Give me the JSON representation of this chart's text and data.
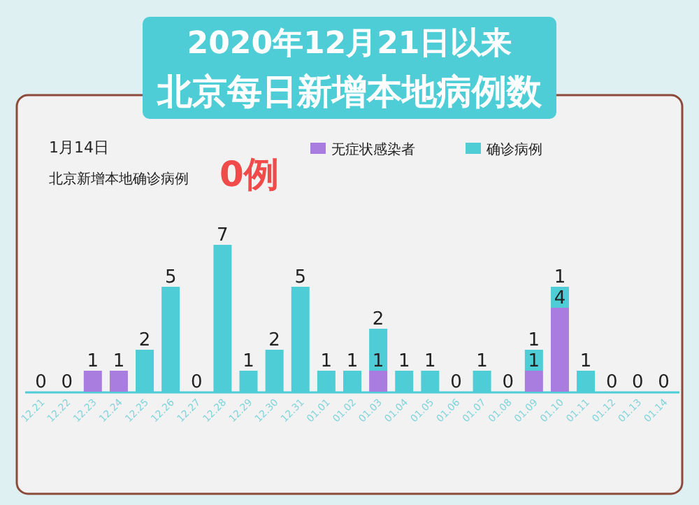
{
  "chart_data": {
    "type": "bar",
    "stacked": true,
    "title": "2020年12月21日以来",
    "subtitle": "北京每日新增本地病例数",
    "annotations": [
      "1月14日",
      "北京新增本地确诊病例",
      "0例"
    ],
    "categories": [
      "12.21",
      "12.22",
      "12.23",
      "12.24",
      "12.25",
      "12.26",
      "12.27",
      "12.28",
      "12.29",
      "12.30",
      "12.31",
      "01.01",
      "01.02",
      "01.03",
      "01.04",
      "01.05",
      "01.06",
      "01.07",
      "01.08",
      "01.09",
      "01.10",
      "01.11",
      "01.12",
      "01.13",
      "01.14"
    ],
    "series": [
      {
        "name": "无症状感染者",
        "color": "#a97de0",
        "values": [
          0,
          0,
          1,
          1,
          0,
          0,
          0,
          0,
          0,
          0,
          0,
          0,
          0,
          1,
          0,
          0,
          0,
          0,
          0,
          1,
          4,
          0,
          0,
          0,
          0
        ],
        "value_labels": [
          null,
          null,
          "1",
          "1",
          null,
          null,
          null,
          null,
          null,
          null,
          null,
          null,
          null,
          "1",
          null,
          null,
          null,
          null,
          null,
          "1",
          "4",
          null,
          null,
          null,
          null
        ]
      },
      {
        "name": "确诊病例",
        "color": "#4ecdd6",
        "values": [
          0,
          0,
          0,
          0,
          2,
          5,
          0,
          7,
          1,
          2,
          5,
          1,
          1,
          2,
          1,
          1,
          0,
          1,
          0,
          1,
          1,
          1,
          0,
          0,
          0
        ],
        "value_labels": [
          "0",
          "0",
          null,
          null,
          "2",
          "5",
          "0",
          "7",
          "1",
          "2",
          "5",
          "1",
          "1",
          "2",
          "1",
          "1",
          "0",
          "1",
          "0",
          "1",
          "1",
          "1",
          "0",
          "0",
          "0"
        ]
      }
    ],
    "legend": "top right"
  }
}
